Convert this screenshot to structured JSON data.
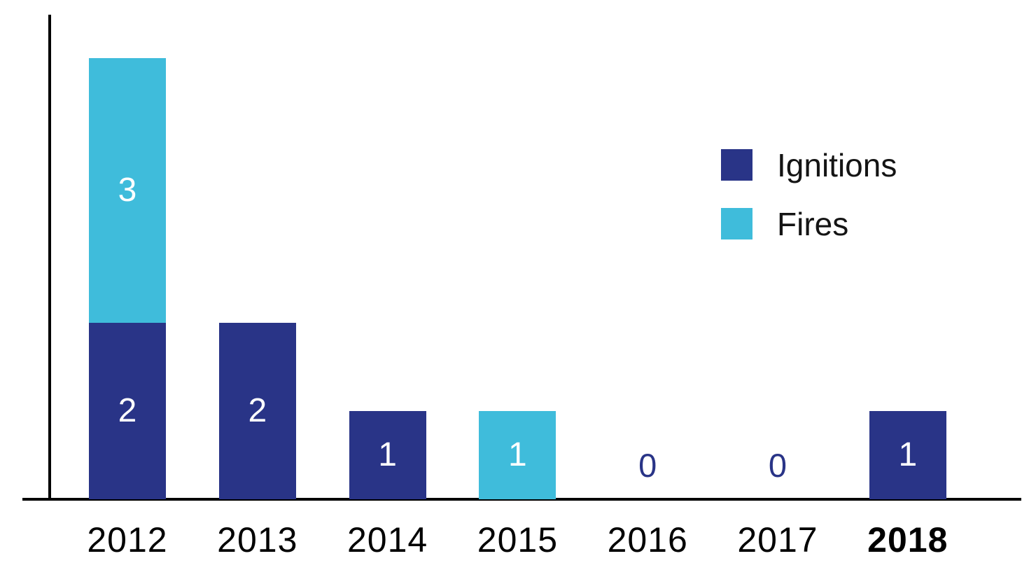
{
  "chart_data": {
    "type": "bar",
    "stacked": true,
    "categories": [
      "2012",
      "2013",
      "2014",
      "2015",
      "2016",
      "2017",
      "2018"
    ],
    "series": [
      {
        "name": "Ignitions",
        "color": "#293487",
        "values": [
          2,
          2,
          1,
          0,
          0,
          0,
          1
        ]
      },
      {
        "name": "Fires",
        "color": "#3FBCDB",
        "values": [
          3,
          0,
          0,
          1,
          0,
          0,
          0
        ]
      }
    ],
    "totals": [
      5,
      2,
      1,
      1,
      0,
      0,
      1
    ],
    "value_labels_shown": [
      "3",
      "2",
      "2",
      "1",
      "1",
      "0",
      "0",
      "1"
    ],
    "value_label_color": "#FFFFFF",
    "zero_label_color": "#293487",
    "emphasized_category": "2018",
    "axis_color": "#000000",
    "grid": false,
    "legend_position": "right",
    "title": "",
    "xlabel": "",
    "ylabel": "",
    "ylim": [
      0,
      5.5
    ]
  },
  "legend": {
    "items": [
      {
        "label": "Ignitions",
        "color": "#293487"
      },
      {
        "label": "Fires",
        "color": "#3FBCDB"
      }
    ]
  }
}
